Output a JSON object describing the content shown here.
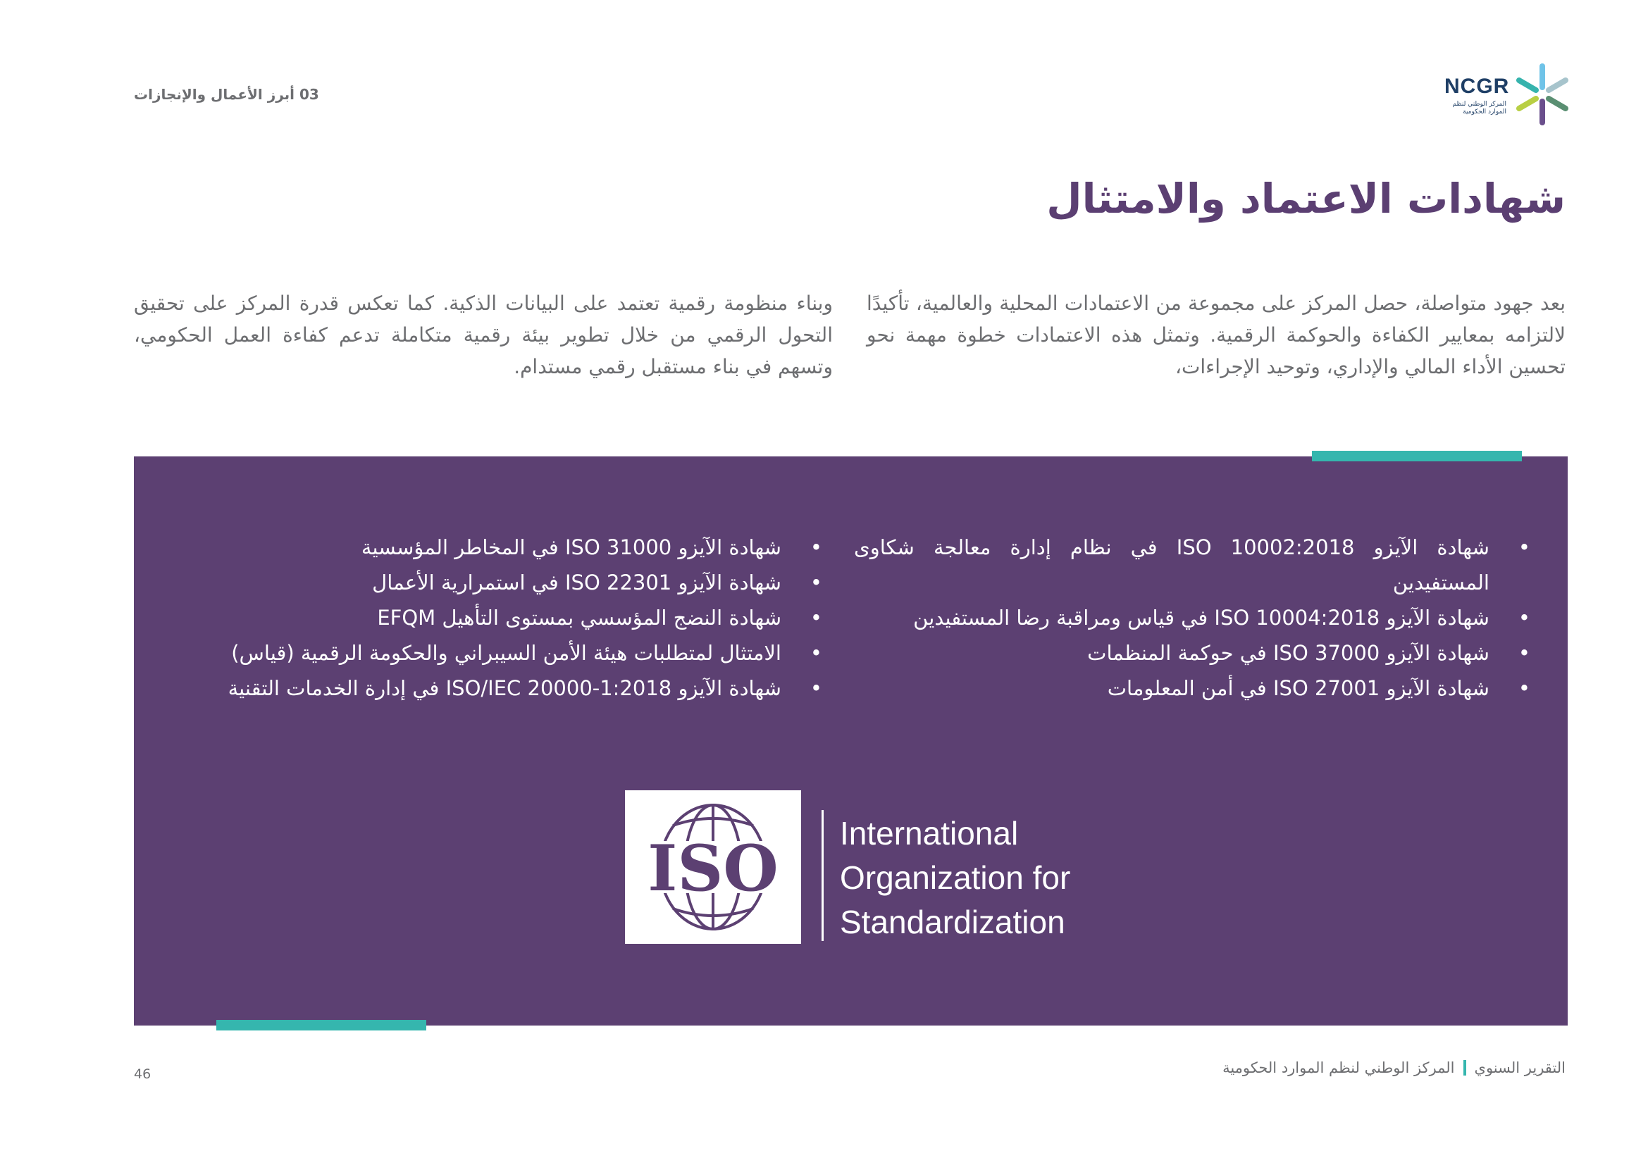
{
  "header": {
    "section": "03 أبرز الأعمال والإنجازات",
    "logo": {
      "text": "NCGR",
      "subtitle": "المركز الوطني لنظم الموارد الحكومية"
    }
  },
  "title": "شهادات الاعتماد والامتثال",
  "intro": {
    "right": "بعد جهود متواصلة، حصل المركز على مجموعة من الاعتمادات المحلية والعالمية، تأكيدًا لالتزامه بمعايير الكفاءة والحوكمة الرقمية. وتمثل هذه الاعتمادات خطوة مهمة نحو تحسين الأداء المالي والإداري، وتوحيد الإجراءات،",
    "left": "وبناء منظومة رقمية تعتمد على البيانات الذكية. كما تعكس قدرة المركز على تحقيق التحول الرقمي من خلال تطوير بيئة رقمية متكاملة تدعم كفاءة العمل الحكومي، وتسهم في بناء مستقبل رقمي مستدام."
  },
  "certificates": {
    "column1": [
      "شهادة الآيزو ISO 10002:2018 في نظام إدارة معالجة شكاوى المستفيدين",
      "شهادة الآيزو ISO 10004:2018 في قياس ومراقبة رضا المستفيدين",
      "شهادة الآيزو ISO 37000 في حوكمة المنظمات",
      "شهادة الآيزو ISO 27001   في أمن المعلومات"
    ],
    "column2": [
      "شهادة الآيزو ISO 31000 في المخاطر المؤسسية",
      "شهادة الآيزو ISO 22301 في استمرارية الأعمال",
      "شهادة النضج المؤسسي بمستوى التأهيل EFQM",
      "الامتثال لمتطلبات هيئة الأمن السيبراني والحكومة الرقمية (قياس)",
      "شهادة الآيزو ISO/IEC 20000-1:2018 في إدارة الخدمات التقنية"
    ]
  },
  "iso_logo": {
    "mark": "ISO",
    "lines": [
      "International",
      "Organization for",
      "Standardization"
    ]
  },
  "footer": {
    "page": "46",
    "report": "التقرير السنوي",
    "org": "المركز الوطني لنظم الموارد الحكومية"
  },
  "colors": {
    "purple": "#5c4072",
    "teal": "#35b6ae",
    "text": "#6d6e71"
  }
}
